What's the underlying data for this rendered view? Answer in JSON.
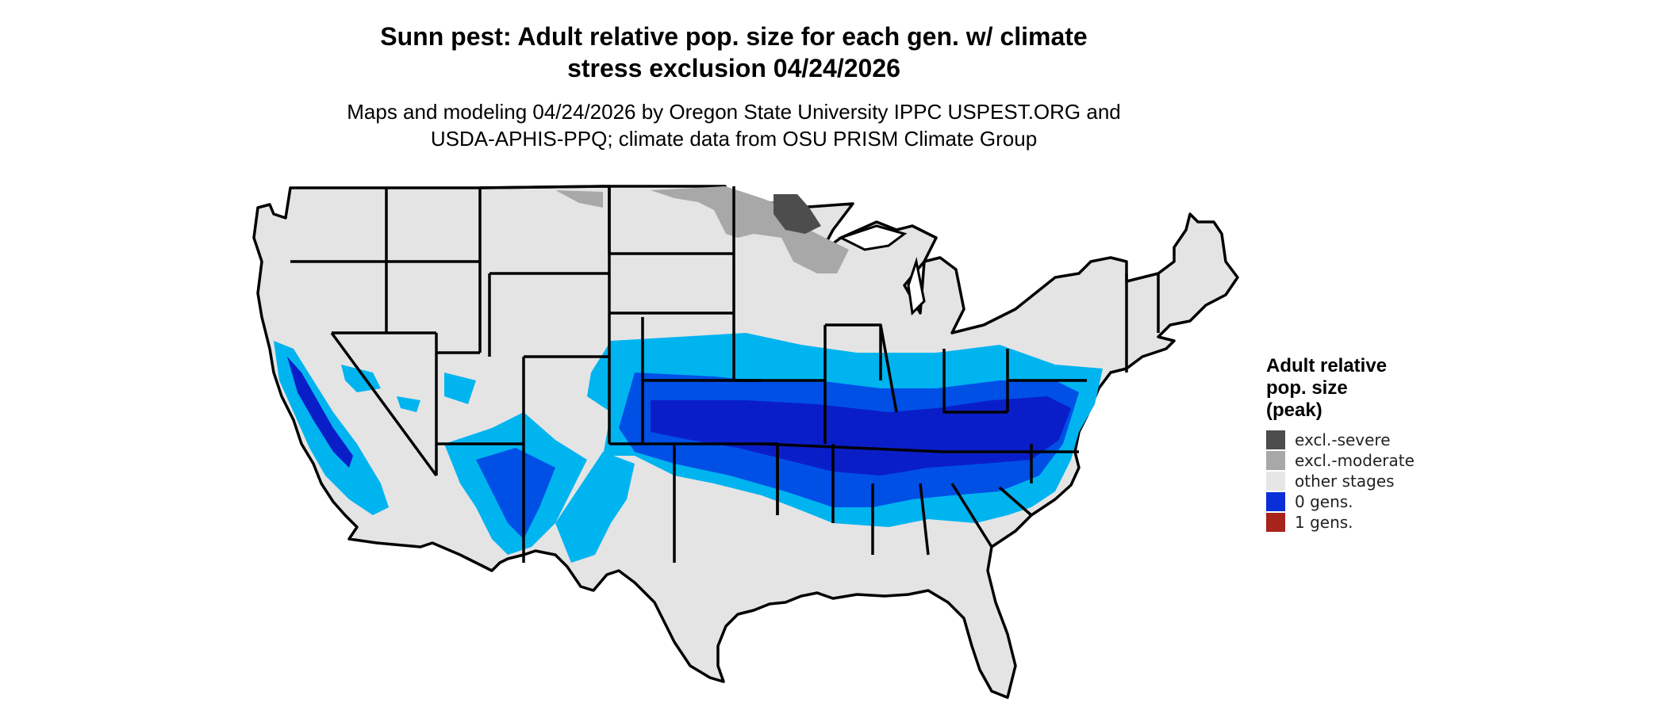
{
  "title": {
    "line1": "Sunn pest: Adult relative pop. size for each gen. w/ climate",
    "line2": "stress exclusion 04/24/2026"
  },
  "subtitle": {
    "line1": "Maps and modeling 04/24/2026 by Oregon State University IPPC USPEST.ORG and",
    "line2": "USDA-APHIS-PPQ; climate data from OSU PRISM Climate Group"
  },
  "legend": {
    "title_line1": "Adult relative",
    "title_line2": "pop. size",
    "title_line3": "(peak)",
    "items": [
      {
        "label": "excl.-severe",
        "color": "#4d4d4d"
      },
      {
        "label": "excl.-moderate",
        "color": "#a8a8a8"
      },
      {
        "label": "other stages",
        "color": "#e6e6e6"
      },
      {
        "label": "0 gens.",
        "color": "#0a2ed8"
      },
      {
        "label": "1 gens.",
        "color": "#a8231b"
      }
    ]
  },
  "map_colors": {
    "background_land": "#e4e4e4",
    "state_borders": "#000000",
    "light_blue": "#00b4f0",
    "mid_blue": "#0050e6",
    "dark_blue": "#0a1ec8",
    "excl_moderate": "#a8a8a8",
    "excl_severe": "#4d4d4d"
  }
}
